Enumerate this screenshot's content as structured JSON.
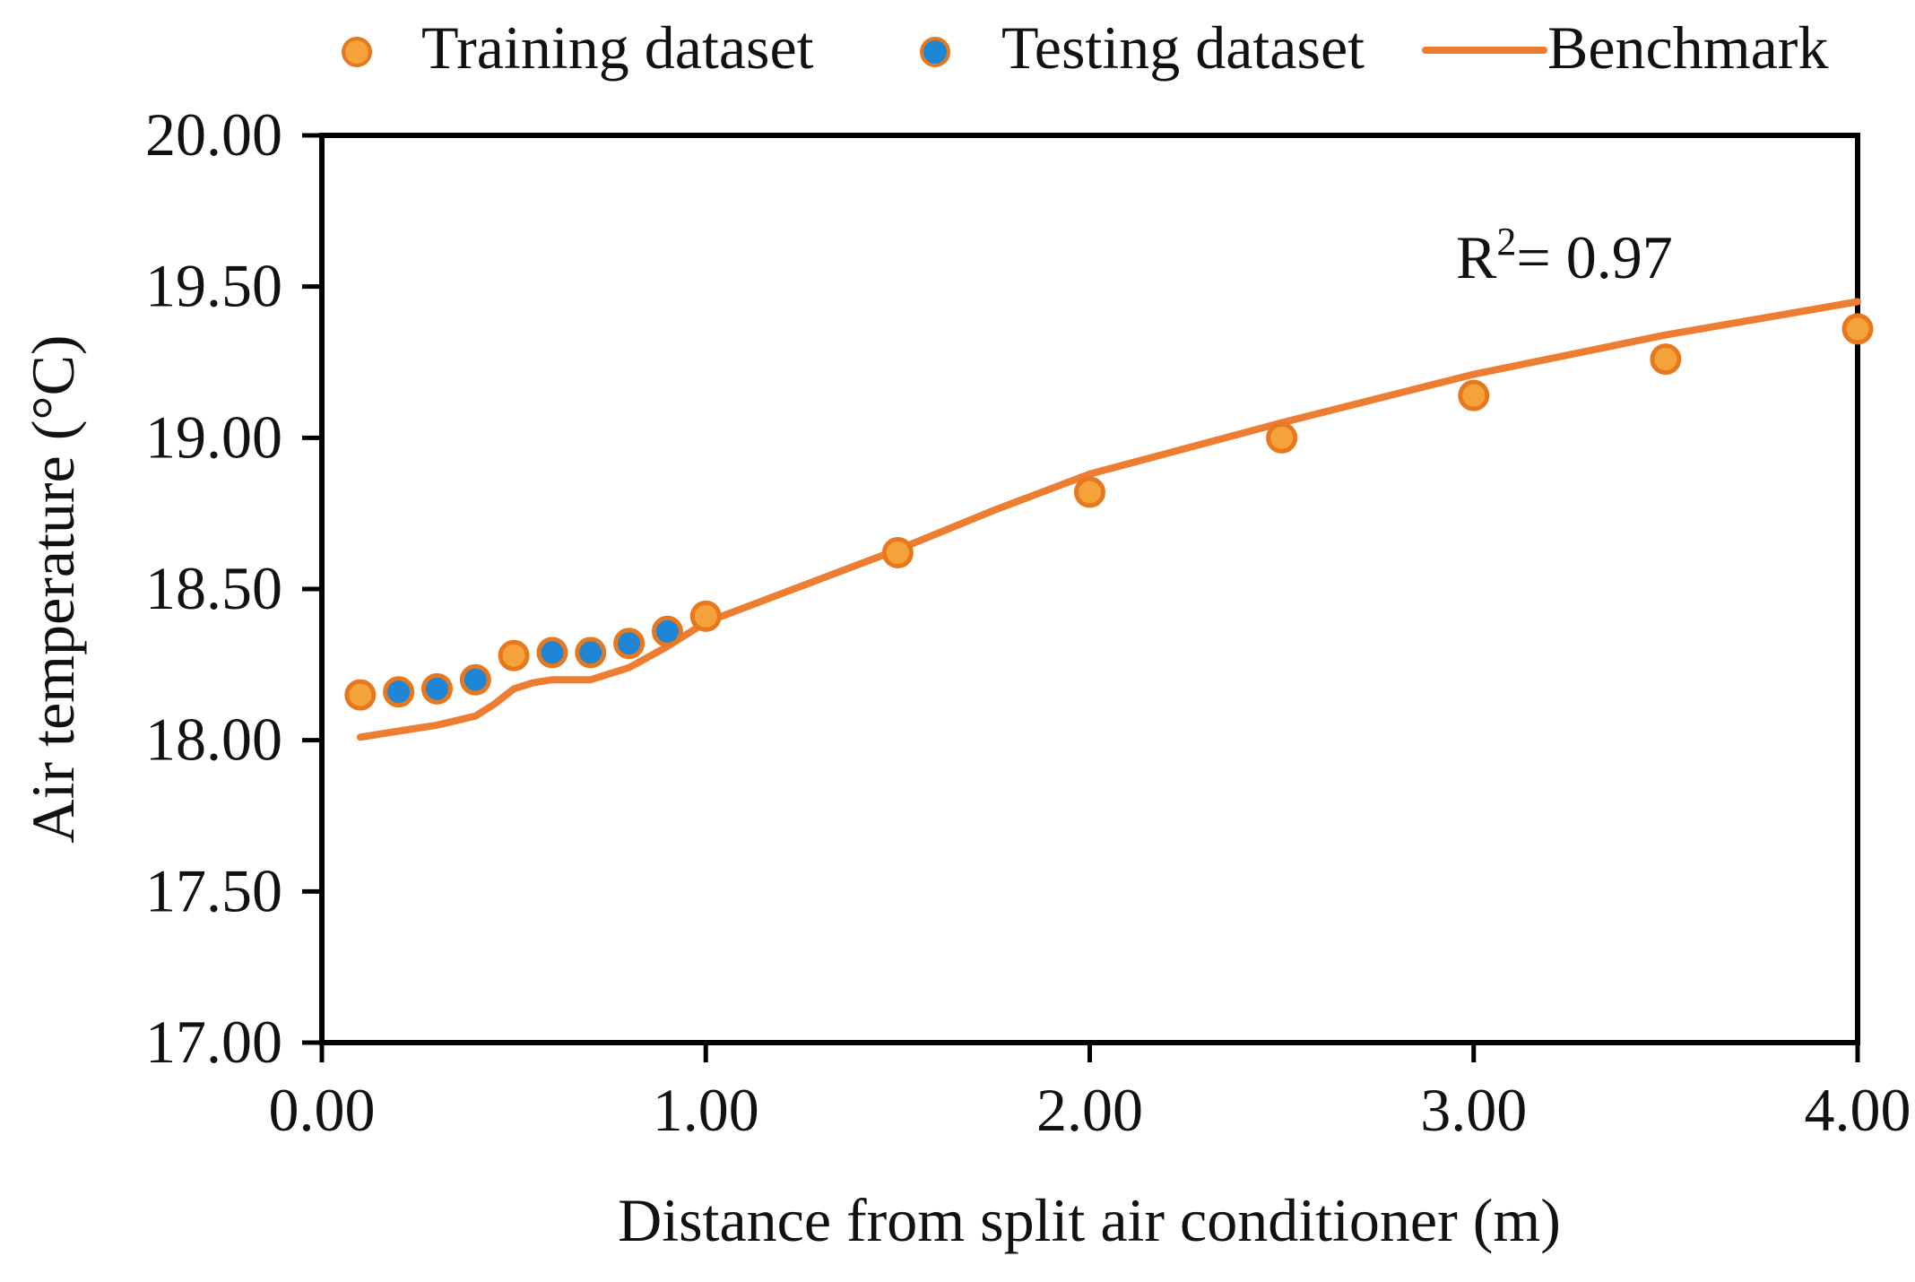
{
  "chart_data": {
    "type": "scatter",
    "title": "",
    "xlabel": "Distance from split air conditioner (m)",
    "ylabel": "Air temperature (°C)",
    "xlim": [
      0,
      4
    ],
    "ylim": [
      17.0,
      20.0
    ],
    "x_ticks": [
      "0.00",
      "1.00",
      "2.00",
      "3.00",
      "4.00"
    ],
    "y_ticks": [
      "17.00",
      "17.50",
      "18.00",
      "18.50",
      "19.00",
      "19.50",
      "20.00"
    ],
    "y_tick_values": [
      17.0,
      17.5,
      18.0,
      18.5,
      19.0,
      19.5,
      20.0
    ],
    "x_tick_values": [
      0,
      1,
      2,
      3,
      4
    ],
    "annotation": {
      "base": "R",
      "sup": "2",
      "rest": "= 0.97"
    },
    "legend_position": "top",
    "colors": {
      "training": "#F4A23A",
      "training_edge": "#E8781E",
      "testing": "#1F86D6",
      "testing_edge": "#E8781E",
      "benchmark": "#ED7D31",
      "axis": "#000000"
    },
    "series": [
      {
        "name": "Training dataset",
        "kind": "markers",
        "x": [
          0.1,
          0.5,
          1.0,
          1.5,
          2.0,
          2.5,
          3.0,
          3.5,
          4.0
        ],
        "y": [
          18.15,
          18.28,
          18.41,
          18.62,
          18.82,
          19.0,
          19.14,
          19.26,
          19.36
        ]
      },
      {
        "name": "Testing dataset",
        "kind": "markers",
        "x": [
          0.2,
          0.3,
          0.4,
          0.6,
          0.7,
          0.8,
          0.9
        ],
        "y": [
          18.16,
          18.17,
          18.2,
          18.29,
          18.29,
          18.32,
          18.36
        ]
      },
      {
        "name": "Benchmark",
        "kind": "line",
        "x": [
          0.1,
          0.2,
          0.3,
          0.4,
          0.45,
          0.5,
          0.55,
          0.6,
          0.7,
          0.8,
          0.9,
          1.0,
          1.25,
          1.5,
          1.75,
          2.0,
          2.5,
          3.0,
          3.5,
          4.0
        ],
        "y": [
          18.01,
          18.03,
          18.05,
          18.08,
          18.12,
          18.17,
          18.19,
          18.2,
          18.2,
          18.24,
          18.31,
          18.39,
          18.51,
          18.63,
          18.76,
          18.88,
          19.05,
          19.21,
          19.34,
          19.45
        ]
      }
    ]
  }
}
